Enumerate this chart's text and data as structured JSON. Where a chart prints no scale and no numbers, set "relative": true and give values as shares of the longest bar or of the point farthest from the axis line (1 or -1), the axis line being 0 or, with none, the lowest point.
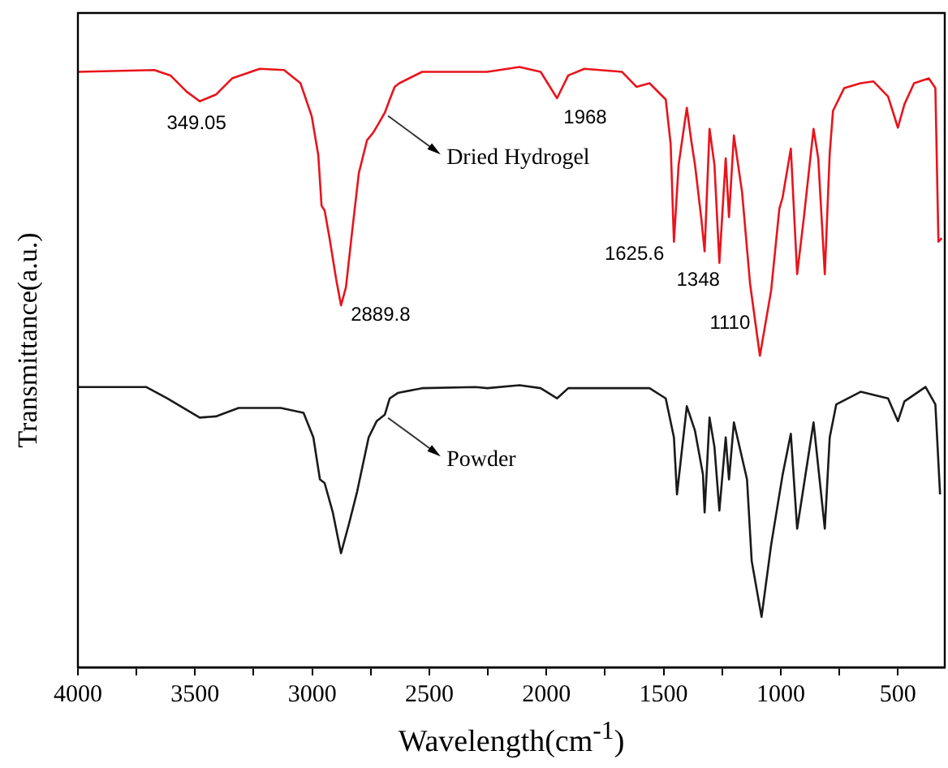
{
  "chart_data": {
    "type": "line",
    "xlabel": "Wavelength(cm$^{-1}$)",
    "ylabel": "Transmittance(a.u.)",
    "relative": true,
    "legend": false,
    "grid": false,
    "marker": "none",
    "line_style": "solid",
    "tick_labels": "x",
    "xlim": [
      4000,
      300
    ],
    "xticks": [
      4000,
      {
        "value": 3750,
        "label": null
      },
      3500,
      {
        "value": 3250,
        "label": null
      },
      3000,
      {
        "value": 2750,
        "label": null
      },
      2500,
      {
        "value": 2250,
        "label": null
      },
      2000,
      {
        "value": 1750,
        "label": null
      },
      1500,
      {
        "value": 1250,
        "label": null
      },
      1000,
      {
        "value": 750,
        "label": null
      },
      500
    ],
    "series": [
      {
        "name": "Dried Hydrogel",
        "color": "#e8141c",
        "x": [
          4000,
          3674,
          3605,
          3536,
          3480,
          3411,
          3342,
          3224,
          3120,
          3050,
          3002,
          2974,
          2960,
          2947,
          2926,
          2898,
          2877,
          2856,
          2829,
          2801,
          2766,
          2739,
          2718,
          2690,
          2669,
          2648,
          2628,
          2531,
          2253,
          2115,
          2025,
          1955,
          1907,
          1838,
          1678,
          1616,
          1560,
          1491,
          1470,
          1456,
          1436,
          1401,
          1380,
          1366,
          1339,
          1325,
          1304,
          1283,
          1262,
          1235,
          1221,
          1200,
          1165,
          1131,
          1089,
          1041,
          1006,
          992,
          957,
          930,
          902,
          860,
          840,
          812,
          791,
          777,
          729,
          659,
          604,
          542,
          500,
          472,
          431,
          368,
          340,
          327,
          313
        ],
        "values": [
          0.992,
          0.995,
          0.986,
          0.959,
          0.943,
          0.954,
          0.981,
          0.997,
          0.995,
          0.973,
          0.918,
          0.853,
          0.769,
          0.761,
          0.715,
          0.647,
          0.603,
          0.633,
          0.728,
          0.823,
          0.878,
          0.891,
          0.905,
          0.924,
          0.946,
          0.967,
          0.973,
          0.992,
          0.992,
          1.0,
          0.992,
          0.948,
          0.986,
          0.997,
          0.992,
          0.967,
          0.973,
          0.946,
          0.872,
          0.709,
          0.837,
          0.932,
          0.872,
          0.837,
          0.747,
          0.693,
          0.897,
          0.837,
          0.674,
          0.848,
          0.75,
          0.886,
          0.791,
          0.639,
          0.519,
          0.628,
          0.764,
          0.783,
          0.864,
          0.655,
          0.747,
          0.897,
          0.848,
          0.655,
          0.856,
          0.927,
          0.965,
          0.973,
          0.976,
          0.951,
          0.899,
          0.938,
          0.973,
          0.981,
          0.965,
          0.709,
          0.715
        ]
      },
      {
        "name": "Powder",
        "color": "#1a1a1a",
        "x": [
          4000,
          3709,
          3619,
          3480,
          3411,
          3314,
          3134,
          3037,
          2995,
          2967,
          2947,
          2912,
          2877,
          2843,
          2808,
          2759,
          2725,
          2690,
          2669,
          2635,
          2531,
          2302,
          2253,
          2115,
          2025,
          1955,
          1907,
          1678,
          1560,
          1491,
          1456,
          1443,
          1401,
          1366,
          1332,
          1325,
          1304,
          1283,
          1262,
          1235,
          1221,
          1200,
          1144,
          1124,
          1082,
          1041,
          992,
          957,
          930,
          860,
          812,
          791,
          763,
          659,
          542,
          500,
          472,
          382,
          340,
          320
        ],
        "values": [
          0.467,
          0.467,
          0.448,
          0.416,
          0.418,
          0.432,
          0.432,
          0.424,
          0.383,
          0.313,
          0.307,
          0.258,
          0.19,
          0.239,
          0.293,
          0.383,
          0.41,
          0.421,
          0.448,
          0.457,
          0.465,
          0.467,
          0.465,
          0.47,
          0.465,
          0.448,
          0.465,
          0.465,
          0.465,
          0.448,
          0.383,
          0.288,
          0.435,
          0.394,
          0.321,
          0.258,
          0.416,
          0.367,
          0.261,
          0.383,
          0.313,
          0.408,
          0.313,
          0.177,
          0.084,
          0.204,
          0.321,
          0.389,
          0.231,
          0.408,
          0.231,
          0.383,
          0.438,
          0.459,
          0.448,
          0.41,
          0.443,
          0.467,
          0.438,
          0.288
        ]
      }
    ],
    "annotations": [
      {
        "text": "349.05",
        "x": 3480,
        "y": 0.943
      },
      {
        "text": "2889.8",
        "x": 2877,
        "y": 0.603
      },
      {
        "text": "1968",
        "x": 1955,
        "y": 0.948
      },
      {
        "text": "1625.6",
        "x": 1456,
        "y": 0.709
      },
      {
        "text": "1348",
        "x": 1325,
        "y": 0.693
      },
      {
        "text": "1110",
        "x": 1089,
        "y": 0.519
      }
    ]
  }
}
